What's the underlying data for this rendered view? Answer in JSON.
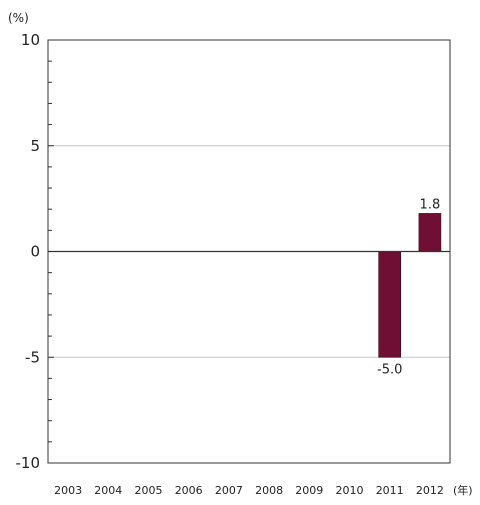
{
  "chart_data": {
    "type": "bar",
    "title": "",
    "xlabel": "",
    "ylabel": "",
    "y_unit": "(%)",
    "x_unit": "(年)",
    "categories": [
      "2003",
      "2004",
      "2005",
      "2006",
      "2007",
      "2008",
      "2009",
      "2010",
      "2011",
      "2012"
    ],
    "series": [
      {
        "values": [
          null,
          null,
          null,
          null,
          null,
          null,
          null,
          null,
          -5.0,
          1.8
        ],
        "data_labels": [
          "",
          "",
          "",
          "",
          "",
          "",
          "",
          "",
          "-5.0",
          "1.8"
        ]
      }
    ],
    "ylim": [
      -10,
      10
    ],
    "yticks": [
      10,
      5,
      0,
      -5,
      -10
    ],
    "grid": true,
    "legend": "none",
    "colors": {
      "bar": "#6e0f33",
      "gridline": "#c8c8c8",
      "axis": "#333333"
    }
  }
}
